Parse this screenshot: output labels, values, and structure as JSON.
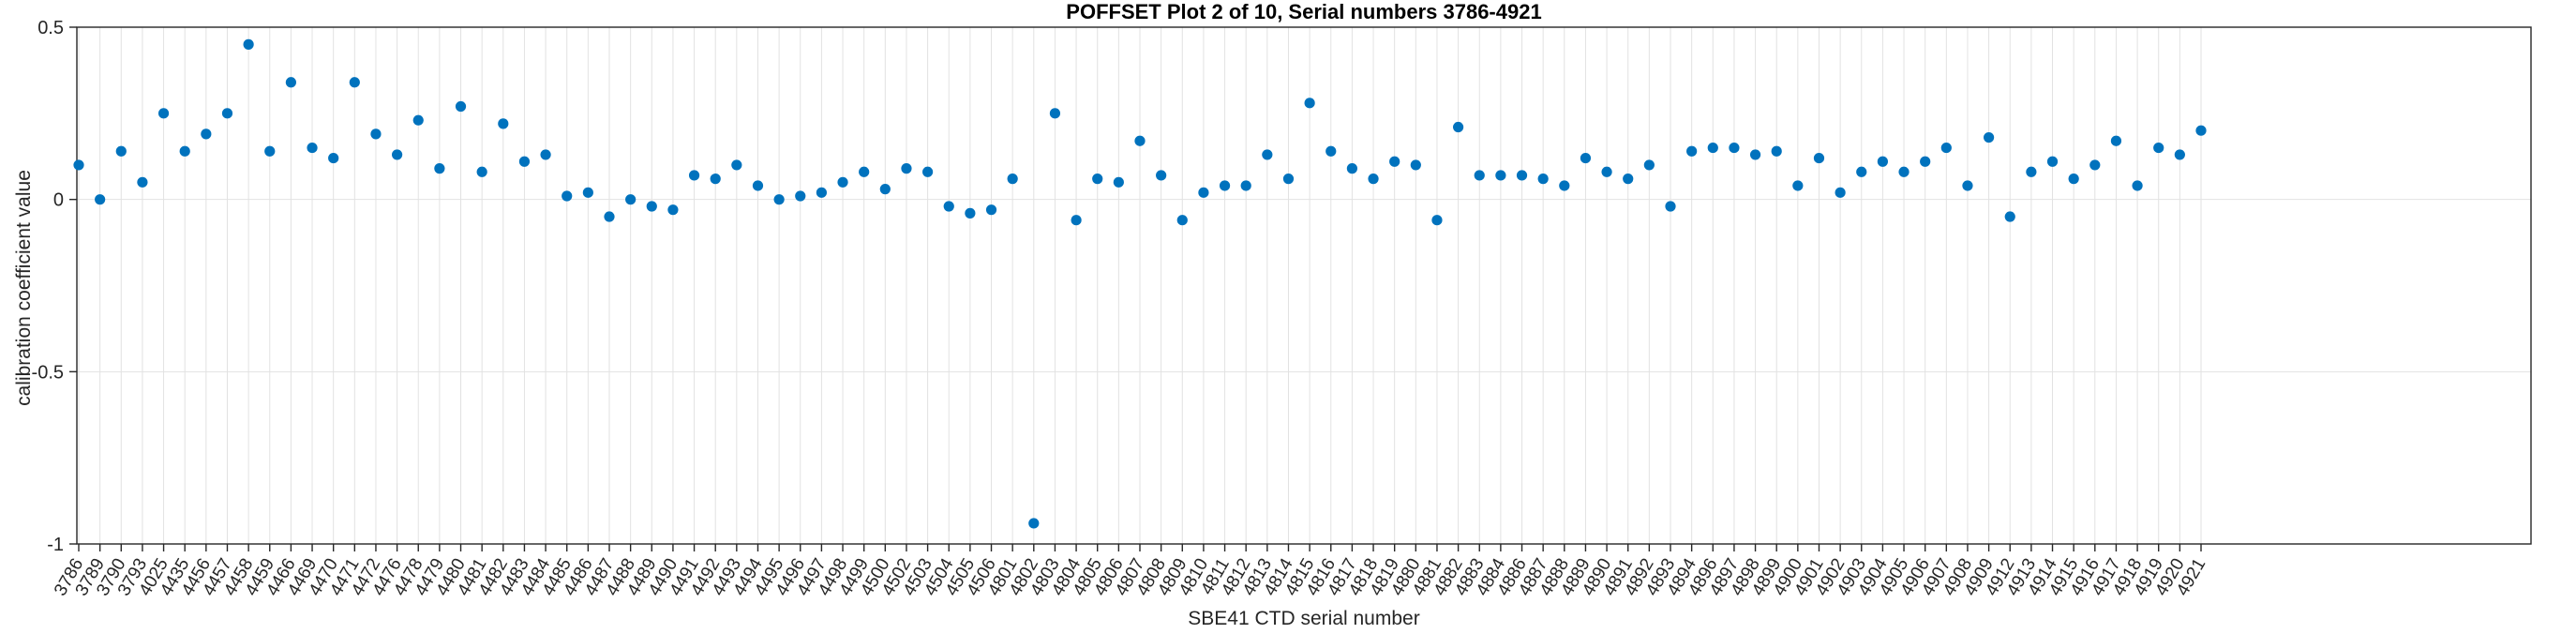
{
  "chart_data": {
    "type": "scatter",
    "title": "POFFSET Plot 2 of 10, Serial numbers 3786-4921",
    "xlabel": "SBE41 CTD serial number",
    "ylabel": "calibration coefficient value",
    "ylim": [
      -1,
      0.5
    ],
    "yticks": [
      0.5,
      0,
      -0.5,
      -1
    ],
    "ytick_labels": [
      "0.5",
      "0",
      "-0.5",
      "-1"
    ],
    "grid": true,
    "legend": "none",
    "marker_color": "#0072BD",
    "grid_color": "#e2e2e2",
    "axis_color": "#262626",
    "tick_label_color": "#262626",
    "categories": [
      "3786",
      "3789",
      "3790",
      "3793",
      "4025",
      "4435",
      "4456",
      "4457",
      "4458",
      "4459",
      "4466",
      "4469",
      "4470",
      "4471",
      "4472",
      "4476",
      "4478",
      "4479",
      "4480",
      "4481",
      "4482",
      "4483",
      "4484",
      "4485",
      "4486",
      "4487",
      "4488",
      "4489",
      "4490",
      "4491",
      "4492",
      "4493",
      "4494",
      "4495",
      "4496",
      "4497",
      "4498",
      "4499",
      "4500",
      "4502",
      "4503",
      "4504",
      "4505",
      "4506",
      "4801",
      "4802",
      "4803",
      "4804",
      "4805",
      "4806",
      "4807",
      "4808",
      "4809",
      "4810",
      "4811",
      "4812",
      "4813",
      "4814",
      "4815",
      "4816",
      "4817",
      "4818",
      "4819",
      "4880",
      "4881",
      "4882",
      "4883",
      "4884",
      "4886",
      "4887",
      "4888",
      "4889",
      "4890",
      "4891",
      "4892",
      "4893",
      "4894",
      "4896",
      "4897",
      "4898",
      "4899",
      "4900",
      "4901",
      "4902",
      "4903",
      "4904",
      "4905",
      "4906",
      "4907",
      "4908",
      "4909",
      "4912",
      "4913",
      "4914",
      "4915",
      "4916",
      "4917",
      "4918",
      "4919",
      "4920",
      "4921"
    ],
    "values": [
      0.1,
      0.0,
      0.14,
      0.05,
      0.25,
      0.14,
      0.19,
      0.25,
      0.45,
      0.14,
      0.34,
      0.15,
      0.12,
      0.34,
      0.19,
      0.13,
      0.23,
      0.09,
      0.27,
      0.08,
      0.22,
      0.11,
      0.13,
      0.01,
      0.02,
      -0.05,
      0.0,
      -0.02,
      -0.03,
      0.07,
      0.06,
      0.1,
      0.04,
      0.0,
      0.01,
      0.02,
      0.05,
      0.08,
      0.03,
      0.09,
      0.08,
      -0.02,
      -0.04,
      -0.03,
      0.06,
      -0.94,
      0.25,
      -0.06,
      0.06,
      0.05,
      0.17,
      0.07,
      -0.06,
      0.02,
      0.04,
      0.04,
      0.13,
      0.06,
      0.28,
      0.14,
      0.09,
      0.06,
      0.11,
      0.1,
      -0.06,
      0.21,
      0.07,
      0.07,
      0.07,
      0.06,
      0.04,
      0.12,
      0.08,
      0.06,
      0.1,
      -0.02,
      0.14,
      0.15,
      0.15,
      0.13,
      0.14,
      0.04,
      0.12,
      0.02,
      0.08,
      0.11,
      0.08,
      0.11,
      0.15,
      0.04,
      0.18,
      -0.05,
      0.08,
      0.11,
      0.06,
      0.1,
      0.17,
      0.04,
      0.15,
      0.13,
      0.2
    ]
  }
}
